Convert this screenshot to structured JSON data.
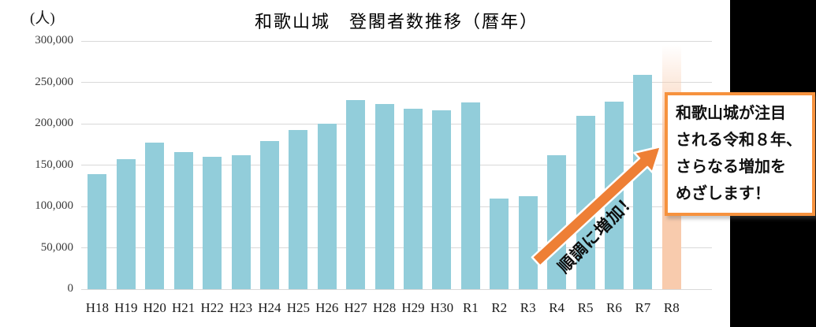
{
  "title": "和歌山城　登閣者数推移（暦年）",
  "y_axis_unit": "(人)",
  "chart_data": {
    "type": "bar",
    "title": "和歌山城　登閣者数推移（暦年）",
    "categories": [
      "H18",
      "H19",
      "H20",
      "H21",
      "H22",
      "H23",
      "H24",
      "H25",
      "H26",
      "H27",
      "H28",
      "H29",
      "H30",
      "R1",
      "R2",
      "R3",
      "R4",
      "R5",
      "R6",
      "R7",
      "R8"
    ],
    "values": [
      139000,
      157000,
      177000,
      166000,
      160000,
      162000,
      179000,
      192000,
      200000,
      229000,
      224000,
      218000,
      216000,
      226000,
      110000,
      112000,
      162000,
      210000,
      227000,
      259000,
      295000
    ],
    "ylabel": "(人)",
    "ylim": [
      0,
      300000
    ],
    "y_ticks": [
      "0",
      "50,000",
      "100,000",
      "150,000",
      "200,000",
      "250,000",
      "300,000"
    ],
    "grid": true,
    "legend": false,
    "bar_color": "#92cdda",
    "highlight_category": "R8",
    "highlight_color": "#f8cbad"
  },
  "annotations": {
    "arrow_label": "順調に増加！",
    "callout_lines": [
      "和歌山城が注目",
      "される令和８年、",
      "さらなる増加を",
      "めざします！"
    ]
  },
  "colors": {
    "bar_blue": "#92cdda",
    "bar_peach": "#f8cbad",
    "arrow_orange": "#ee7f35",
    "callout_border_orange": "#f6923e",
    "gridline_gray": "#d9d9d9",
    "background_black": "#000000"
  }
}
